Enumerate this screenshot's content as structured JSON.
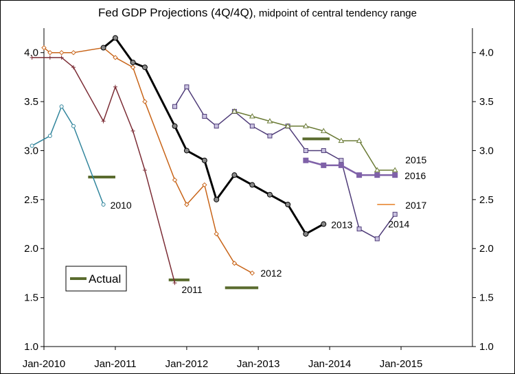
{
  "chart_data": {
    "type": "line",
    "title": "Fed GDP Projections (4Q/4Q)",
    "subtitle": ", midpoint of central tendency range",
    "xlabel": "",
    "ylabel": "",
    "ylim": [
      1.0,
      4.25
    ],
    "xlim": [
      "2010-01-01",
      "2016-01-01"
    ],
    "y_ticks": [
      "1.0",
      "1.5",
      "2.0",
      "2.5",
      "3.0",
      "3.5",
      "4.0"
    ],
    "x_ticks": [
      {
        "date": "2010-01-01",
        "label": "Jan-2010"
      },
      {
        "date": "2011-01-01",
        "label": "Jan-2011"
      },
      {
        "date": "2012-01-01",
        "label": "Jan-2012"
      },
      {
        "date": "2013-01-01",
        "label": "Jan-2013"
      },
      {
        "date": "2014-01-01",
        "label": "Jan-2014"
      },
      {
        "date": "2015-01-01",
        "label": "Jan-2015"
      }
    ],
    "grid": false,
    "right_axis": true,
    "legend": {
      "position": "lower-left",
      "entries": [
        "Actual"
      ]
    },
    "series": [
      {
        "name": "2010",
        "color": "#31859c",
        "marker": "circle-open",
        "points": [
          [
            "2009-11-01",
            3.05
          ],
          [
            "2010-02-01",
            3.15
          ],
          [
            "2010-04-01",
            3.45
          ],
          [
            "2010-06-01",
            3.25
          ],
          [
            "2010-11-01",
            2.45
          ]
        ]
      },
      {
        "name": "2011",
        "color": "#7b2c35",
        "marker": "plus",
        "points": [
          [
            "2009-11-01",
            3.95
          ],
          [
            "2010-02-01",
            3.95
          ],
          [
            "2010-04-01",
            3.95
          ],
          [
            "2010-06-01",
            3.85
          ],
          [
            "2010-11-01",
            3.3
          ],
          [
            "2011-01-01",
            3.65
          ],
          [
            "2011-04-01",
            3.2
          ],
          [
            "2011-06-01",
            2.8
          ],
          [
            "2011-11-01",
            1.65
          ]
        ]
      },
      {
        "name": "2012",
        "color": "#c86418",
        "marker": "diamond-open",
        "points": [
          [
            "2010-01-01",
            4.05
          ],
          [
            "2010-02-01",
            4.0
          ],
          [
            "2010-04-01",
            4.0
          ],
          [
            "2010-06-01",
            4.0
          ],
          [
            "2010-11-01",
            4.05
          ],
          [
            "2011-01-01",
            3.95
          ],
          [
            "2011-04-01",
            3.85
          ],
          [
            "2011-06-01",
            3.5
          ],
          [
            "2011-11-01",
            2.7
          ],
          [
            "2012-01-01",
            2.45
          ],
          [
            "2012-04-01",
            2.65
          ],
          [
            "2012-06-01",
            2.15
          ],
          [
            "2012-09-01",
            1.85
          ],
          [
            "2012-12-01",
            1.75
          ]
        ]
      },
      {
        "name": "2013",
        "color": "#000000",
        "marker": "circle-grey",
        "bold": true,
        "points": [
          [
            "2010-11-01",
            4.05
          ],
          [
            "2011-01-01",
            4.15
          ],
          [
            "2011-04-01",
            3.9
          ],
          [
            "2011-06-01",
            3.85
          ],
          [
            "2011-11-01",
            3.25
          ],
          [
            "2012-01-01",
            3.0
          ],
          [
            "2012-04-01",
            2.9
          ],
          [
            "2012-06-01",
            2.5
          ],
          [
            "2012-09-01",
            2.75
          ],
          [
            "2012-12-01",
            2.65
          ],
          [
            "2013-03-01",
            2.55
          ],
          [
            "2013-06-01",
            2.45
          ],
          [
            "2013-09-01",
            2.15
          ],
          [
            "2013-12-01",
            2.25
          ]
        ]
      },
      {
        "name": "2014",
        "color": "#4e3b78",
        "marker": "square-light",
        "points": [
          [
            "2011-11-01",
            3.45
          ],
          [
            "2012-01-01",
            3.65
          ],
          [
            "2012-04-01",
            3.35
          ],
          [
            "2012-06-01",
            3.25
          ],
          [
            "2012-09-01",
            3.4
          ],
          [
            "2012-12-01",
            3.25
          ],
          [
            "2013-03-01",
            3.15
          ],
          [
            "2013-06-01",
            3.25
          ],
          [
            "2013-09-01",
            3.0
          ],
          [
            "2013-12-01",
            3.0
          ],
          [
            "2014-03-01",
            2.9
          ],
          [
            "2014-06-01",
            2.2
          ],
          [
            "2014-09-01",
            2.1
          ],
          [
            "2014-12-01",
            2.35
          ]
        ]
      },
      {
        "name": "2015",
        "color": "#6a7a35",
        "marker": "triangle-open",
        "points": [
          [
            "2012-09-01",
            3.4
          ],
          [
            "2012-12-01",
            3.35
          ],
          [
            "2013-03-01",
            3.3
          ],
          [
            "2013-06-01",
            3.25
          ],
          [
            "2013-09-01",
            3.25
          ],
          [
            "2013-12-01",
            3.2
          ],
          [
            "2014-03-01",
            3.1
          ],
          [
            "2014-06-01",
            3.1
          ],
          [
            "2014-09-01",
            2.8
          ],
          [
            "2014-12-01",
            2.8
          ]
        ]
      },
      {
        "name": "2016",
        "color": "#7f61a8",
        "marker": "square-filled",
        "bold": true,
        "points": [
          [
            "2013-09-01",
            2.9
          ],
          [
            "2013-12-01",
            2.85
          ],
          [
            "2014-03-01",
            2.85
          ],
          [
            "2014-06-01",
            2.75
          ],
          [
            "2014-09-01",
            2.75
          ],
          [
            "2014-12-01",
            2.75
          ]
        ]
      },
      {
        "name": "2017",
        "color": "#e67e22",
        "marker": "none",
        "points": [
          [
            "2014-09-01",
            2.45
          ],
          [
            "2014-12-01",
            2.45
          ]
        ]
      }
    ],
    "actual": [
      {
        "start": "2010-08-15",
        "end": "2011-01-01",
        "value": 2.73
      },
      {
        "start": "2011-10-01",
        "end": "2012-01-15",
        "value": 1.68
      },
      {
        "start": "2012-07-15",
        "end": "2013-01-01",
        "value": 1.6
      },
      {
        "start": "2013-08-15",
        "end": "2014-01-01",
        "value": 3.12
      }
    ]
  },
  "legend_label": "Actual"
}
